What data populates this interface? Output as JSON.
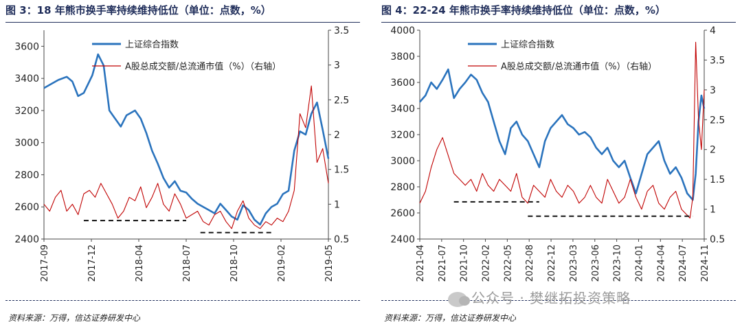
{
  "figures": [
    {
      "title": "图 3：18 年熊市换手率持续维持低位（单位：点数，%）",
      "source": "资料来源：万得，信达证券研发中心",
      "chart_data": {
        "type": "line",
        "title": "图 3：18 年熊市换手率持续维持低位（单位：点数，%）",
        "x_range": [
          "2017-09",
          "2019-05"
        ],
        "x_tick_labels": [
          "2017-09",
          "2017-12",
          "2018-04",
          "2018-07",
          "2018-10",
          "2019-02",
          "2019-05"
        ],
        "y_left": {
          "ylim": [
            2400,
            3700
          ],
          "ticks": [
            2400,
            2600,
            2800,
            3000,
            3200,
            3400,
            3600
          ]
        },
        "y_right": {
          "ylim": [
            0.5,
            3.5
          ],
          "ticks": [
            0.5,
            1,
            1.5,
            2,
            2.5,
            3,
            3.5
          ],
          "tick_labels": [
            "0.5",
            "1",
            "1.5",
            "2",
            "2.5",
            "3",
            "3.5"
          ]
        },
        "legend": [
          "上证综合指数",
          "A股总成交额/总流通市值（%）（右轴）"
        ],
        "legend_position": "top-center",
        "series": [
          {
            "name": "上证综合指数",
            "axis": "left",
            "color": "#2a73bd",
            "x": [
              0,
              0.02,
              0.05,
              0.08,
              0.1,
              0.12,
              0.14,
              0.17,
              0.19,
              0.21,
              0.23,
              0.25,
              0.27,
              0.29,
              0.3,
              0.32,
              0.34,
              0.36,
              0.38,
              0.4,
              0.42,
              0.44,
              0.46,
              0.48,
              0.5,
              0.52,
              0.54,
              0.56,
              0.58,
              0.6,
              0.62,
              0.64,
              0.66,
              0.68,
              0.7,
              0.72,
              0.74,
              0.76,
              0.78,
              0.8,
              0.82,
              0.84,
              0.86,
              0.88,
              0.9,
              0.92,
              0.94,
              0.96,
              0.98,
              1.0
            ],
            "y": [
              3340,
              3360,
              3390,
              3410,
              3380,
              3290,
              3310,
              3420,
              3550,
              3480,
              3200,
              3150,
              3100,
              3170,
              3180,
              3200,
              3150,
              3060,
              2950,
              2870,
              2780,
              2720,
              2760,
              2700,
              2690,
              2650,
              2620,
              2600,
              2580,
              2560,
              2620,
              2580,
              2540,
              2520,
              2610,
              2580,
              2520,
              2490,
              2560,
              2600,
              2620,
              2680,
              2700,
              2950,
              3070,
              3050,
              3180,
              3250,
              3080,
              2900
            ]
          },
          {
            "name": "A股总成交额/总流通市值（%）（右轴）",
            "axis": "right",
            "color": "#c00000",
            "x": [
              0,
              0.02,
              0.04,
              0.06,
              0.08,
              0.1,
              0.12,
              0.14,
              0.16,
              0.18,
              0.2,
              0.22,
              0.24,
              0.26,
              0.28,
              0.3,
              0.32,
              0.34,
              0.36,
              0.38,
              0.4,
              0.42,
              0.44,
              0.46,
              0.48,
              0.5,
              0.52,
              0.54,
              0.56,
              0.58,
              0.6,
              0.62,
              0.64,
              0.66,
              0.68,
              0.7,
              0.72,
              0.74,
              0.76,
              0.78,
              0.8,
              0.82,
              0.84,
              0.86,
              0.88,
              0.9,
              0.92,
              0.94,
              0.96,
              0.98,
              1.0
            ],
            "y": [
              1.0,
              0.9,
              1.1,
              1.2,
              0.9,
              1.0,
              0.85,
              1.15,
              1.2,
              1.1,
              1.3,
              1.15,
              1.0,
              0.8,
              0.9,
              1.1,
              1.05,
              1.25,
              0.95,
              1.1,
              1.3,
              1.0,
              0.9,
              1.15,
              1.0,
              0.8,
              0.85,
              0.9,
              0.75,
              0.7,
              0.85,
              0.9,
              0.75,
              0.65,
              0.9,
              1.05,
              0.8,
              0.7,
              0.65,
              0.75,
              0.7,
              0.8,
              0.75,
              0.9,
              1.2,
              2.3,
              2.1,
              2.7,
              1.6,
              1.8,
              1.3
            ]
          }
        ],
        "annotations": [
          {
            "type": "dashed-line",
            "axis": "left",
            "x0": 0.14,
            "x1": 0.5,
            "y": 2515
          },
          {
            "type": "dashed-line",
            "axis": "left",
            "x0": 0.55,
            "x1": 0.81,
            "y": 2440
          }
        ]
      }
    },
    {
      "title": "图 4：22-24 年熊市换手率持续维持低位（单位：点数，%）",
      "source": "资料来源：万得，信达证券研发中心",
      "chart_data": {
        "type": "line",
        "title": "图 4：22-24 年熊市换手率持续维持低位（单位：点数，%）",
        "x_range": [
          "2021-04",
          "2024-11"
        ],
        "x_tick_labels": [
          "2021-04",
          "2021-07",
          "2021-10",
          "2022-02",
          "2022-05",
          "2022-08",
          "2022-12",
          "2023-03",
          "2023-06",
          "2023-10",
          "2024-01",
          "2024-04",
          "2024-07",
          "2024-11"
        ],
        "y_left": {
          "ylim": [
            2400,
            4000
          ],
          "ticks": [
            2400,
            2600,
            2800,
            3000,
            3200,
            3400,
            3600,
            3800,
            4000
          ]
        },
        "y_right": {
          "ylim": [
            0.5,
            4
          ],
          "ticks": [
            0.5,
            1,
            1.5,
            2,
            2.5,
            3,
            3.5,
            4
          ],
          "tick_labels": [
            "0.5",
            "1",
            "1.5",
            "2",
            "2.5",
            "3",
            "3.5",
            "4"
          ]
        },
        "legend": [
          "上证综合指数",
          "A股总成交额/总流通市值（%）（右轴）"
        ],
        "legend_position": "top-center",
        "series": [
          {
            "name": "上证综合指数",
            "axis": "left",
            "color": "#2a73bd",
            "x": [
              0,
              0.02,
              0.04,
              0.06,
              0.08,
              0.1,
              0.12,
              0.14,
              0.16,
              0.18,
              0.2,
              0.22,
              0.24,
              0.26,
              0.28,
              0.3,
              0.32,
              0.34,
              0.36,
              0.38,
              0.4,
              0.42,
              0.44,
              0.46,
              0.48,
              0.5,
              0.52,
              0.54,
              0.56,
              0.58,
              0.6,
              0.62,
              0.64,
              0.66,
              0.68,
              0.7,
              0.72,
              0.74,
              0.76,
              0.78,
              0.8,
              0.82,
              0.84,
              0.86,
              0.88,
              0.9,
              0.92,
              0.94,
              0.96,
              0.97,
              0.98,
              0.99,
              1.0
            ],
            "y": [
              3450,
              3500,
              3600,
              3550,
              3620,
              3700,
              3480,
              3550,
              3600,
              3660,
              3620,
              3520,
              3450,
              3300,
              3150,
              3050,
              3250,
              3300,
              3200,
              3150,
              3050,
              2950,
              3150,
              3250,
              3300,
              3350,
              3280,
              3250,
              3200,
              3220,
              3180,
              3100,
              3050,
              3100,
              3000,
              2950,
              3000,
              2870,
              2750,
              2900,
              3050,
              3100,
              3150,
              3000,
              2900,
              2950,
              2870,
              2750,
              2700,
              2900,
              3300,
              3500,
              3400
            ]
          },
          {
            "name": "A股总成交额/总流通市值（%）（右轴）",
            "axis": "right",
            "color": "#c00000",
            "x": [
              0,
              0.02,
              0.04,
              0.06,
              0.08,
              0.1,
              0.12,
              0.14,
              0.16,
              0.18,
              0.2,
              0.22,
              0.24,
              0.26,
              0.28,
              0.3,
              0.32,
              0.34,
              0.36,
              0.38,
              0.4,
              0.42,
              0.44,
              0.46,
              0.48,
              0.5,
              0.52,
              0.54,
              0.56,
              0.58,
              0.6,
              0.62,
              0.64,
              0.66,
              0.68,
              0.7,
              0.72,
              0.74,
              0.76,
              0.78,
              0.8,
              0.82,
              0.84,
              0.86,
              0.88,
              0.9,
              0.92,
              0.94,
              0.95,
              0.96,
              0.97,
              0.98,
              0.99,
              1.0
            ],
            "y": [
              1.1,
              1.3,
              1.7,
              2.0,
              2.2,
              1.9,
              1.6,
              1.5,
              1.4,
              1.5,
              1.3,
              1.6,
              1.4,
              1.3,
              1.5,
              1.4,
              1.3,
              1.6,
              1.2,
              1.1,
              1.4,
              1.3,
              1.2,
              1.5,
              1.3,
              1.2,
              1.4,
              1.3,
              1.1,
              1.2,
              1.4,
              1.2,
              1.1,
              1.5,
              1.3,
              1.1,
              1.2,
              1.5,
              1.2,
              1.0,
              1.3,
              1.4,
              1.1,
              1.0,
              1.2,
              1.3,
              1.0,
              0.9,
              0.85,
              1.2,
              3.8,
              2.5,
              2.0,
              3.0
            ]
          }
        ],
        "annotations": [
          {
            "type": "dashed-line",
            "axis": "left",
            "x0": 0.12,
            "x1": 0.42,
            "y": 2685
          },
          {
            "type": "dashed-line",
            "axis": "left",
            "x0": 0.38,
            "x1": 0.96,
            "y": 2575
          }
        ]
      }
    }
  ],
  "watermark": "公众号 · 樊继拓投资策略"
}
